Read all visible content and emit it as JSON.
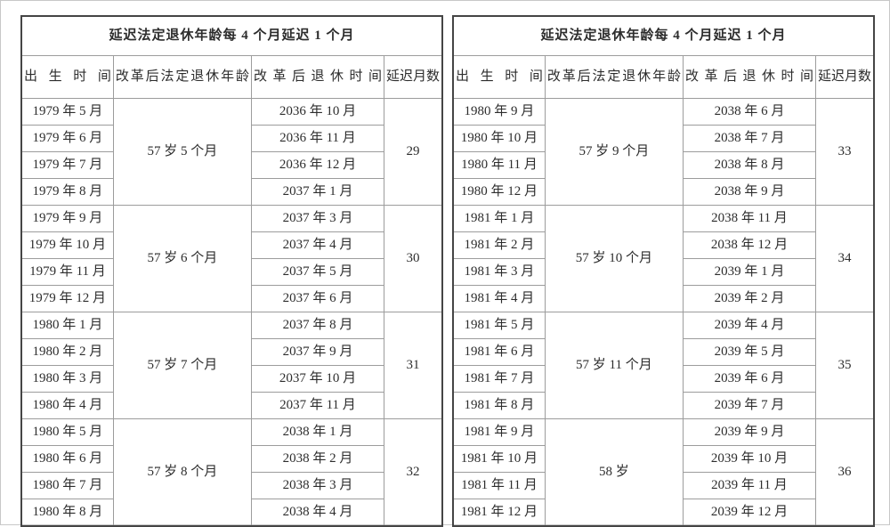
{
  "page": {
    "background": "#ffffff",
    "frame_border_color": "#c8c8c8",
    "table_outer_border_color": "#454545",
    "table_inner_border_color": "#9c9c9c",
    "text_color": "#2d2d2d"
  },
  "tables": [
    {
      "title": "延迟法定退休年龄每 4 个月延迟 1 个月",
      "columns": [
        "出生时间",
        "改革后法定退休年龄",
        "改革后退休时间",
        "延迟月数"
      ],
      "groups": [
        {
          "birth_months": [
            "1979 年 5 月",
            "1979 年 6 月",
            "1979 年 7 月",
            "1979 年 8 月"
          ],
          "retirement_age": "57 岁 5 个月",
          "retirement_months": [
            "2036 年 10 月",
            "2036 年 11 月",
            "2036 年 12 月",
            "2037 年 1 月"
          ],
          "delay_months": "29"
        },
        {
          "birth_months": [
            "1979 年 9 月",
            "1979 年 10 月",
            "1979 年 11 月",
            "1979 年 12 月"
          ],
          "retirement_age": "57 岁 6 个月",
          "retirement_months": [
            "2037 年 3 月",
            "2037 年 4 月",
            "2037 年 5 月",
            "2037 年 6 月"
          ],
          "delay_months": "30"
        },
        {
          "birth_months": [
            "1980 年 1 月",
            "1980 年 2 月",
            "1980 年 3 月",
            "1980 年 4 月"
          ],
          "retirement_age": "57 岁 7 个月",
          "retirement_months": [
            "2037 年 8 月",
            "2037 年 9 月",
            "2037 年 10 月",
            "2037 年 11 月"
          ],
          "delay_months": "31"
        },
        {
          "birth_months": [
            "1980 年 5 月",
            "1980 年 6 月",
            "1980 年 7 月",
            "1980 年 8 月"
          ],
          "retirement_age": "57 岁 8 个月",
          "retirement_months": [
            "2038 年 1 月",
            "2038 年 2 月",
            "2038 年 3 月",
            "2038 年 4 月"
          ],
          "delay_months": "32"
        }
      ]
    },
    {
      "title": "延迟法定退休年龄每 4 个月延迟 1 个月",
      "columns": [
        "出生时间",
        "改革后法定退休年龄",
        "改革后退休时间",
        "延迟月数"
      ],
      "groups": [
        {
          "birth_months": [
            "1980 年 9 月",
            "1980 年 10 月",
            "1980 年 11 月",
            "1980 年 12 月"
          ],
          "retirement_age": "57 岁 9 个月",
          "retirement_months": [
            "2038 年 6 月",
            "2038 年 7 月",
            "2038 年 8 月",
            "2038 年 9 月"
          ],
          "delay_months": "33"
        },
        {
          "birth_months": [
            "1981 年 1 月",
            "1981 年 2 月",
            "1981 年 3 月",
            "1981 年 4 月"
          ],
          "retirement_age": "57 岁 10 个月",
          "retirement_months": [
            "2038 年 11 月",
            "2038 年 12 月",
            "2039 年 1 月",
            "2039 年 2 月"
          ],
          "delay_months": "34"
        },
        {
          "birth_months": [
            "1981 年 5 月",
            "1981 年 6 月",
            "1981 年 7 月",
            "1981 年 8 月"
          ],
          "retirement_age": "57 岁 11 个月",
          "retirement_months": [
            "2039 年 4 月",
            "2039 年 5 月",
            "2039 年 6 月",
            "2039 年 7 月"
          ],
          "delay_months": "35"
        },
        {
          "birth_months": [
            "1981 年 9 月",
            "1981 年 10 月",
            "1981 年 11 月",
            "1981 年 12 月"
          ],
          "retirement_age": "58 岁",
          "retirement_months": [
            "2039 年 9 月",
            "2039 年 10 月",
            "2039 年 11 月",
            "2039 年 12 月"
          ],
          "delay_months": "36"
        }
      ]
    }
  ]
}
